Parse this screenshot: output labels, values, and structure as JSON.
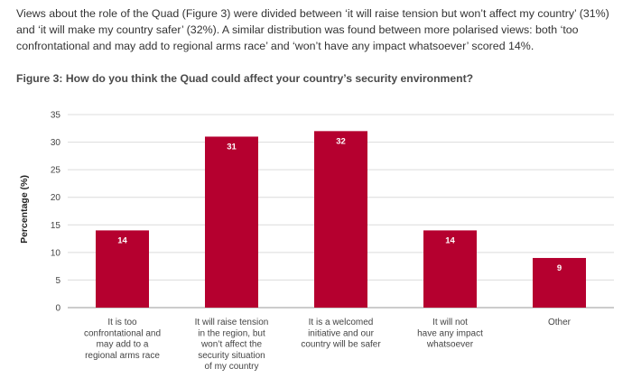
{
  "intro": {
    "text": "Views about the role of the Quad (Figure 3) were divided between ‘it will raise tension but won’t affect my country’ (31%) and ‘it will make my country safer’ (32%). A similar distribution was found between more polarised views: both ‘too confrontational and may add to regional arms race’ and ‘won’t have any impact whatsoever’ scored 14%."
  },
  "figure": {
    "label": "Figure 3:",
    "question": "How do you think the Quad could affect your country’s security environment?"
  },
  "colors": {
    "bar": "#b5002f",
    "grid": "#dcdcdc",
    "axis": "#999999",
    "value_label": "#ffffff"
  },
  "chart_data": {
    "type": "bar",
    "title": "How do you think the Quad could affect your country’s security environment?",
    "xlabel": "",
    "ylabel": "Percentage (%)",
    "ylim": [
      0,
      35
    ],
    "yticks": [
      0,
      5,
      10,
      15,
      20,
      25,
      30,
      35
    ],
    "grid": true,
    "categories": [
      [
        "It is too",
        "confrontational and",
        "may add to a",
        "regional arms race"
      ],
      [
        "It will raise tension",
        "in the region, but",
        "won’t affect the",
        "security situation",
        "of my country"
      ],
      [
        "It is a welcomed",
        "initiative and our",
        "country will be safer"
      ],
      [
        "It will not",
        "have any impact",
        "whatsoever"
      ],
      [
        "Other"
      ]
    ],
    "values": [
      14,
      31,
      32,
      14,
      9
    ]
  }
}
